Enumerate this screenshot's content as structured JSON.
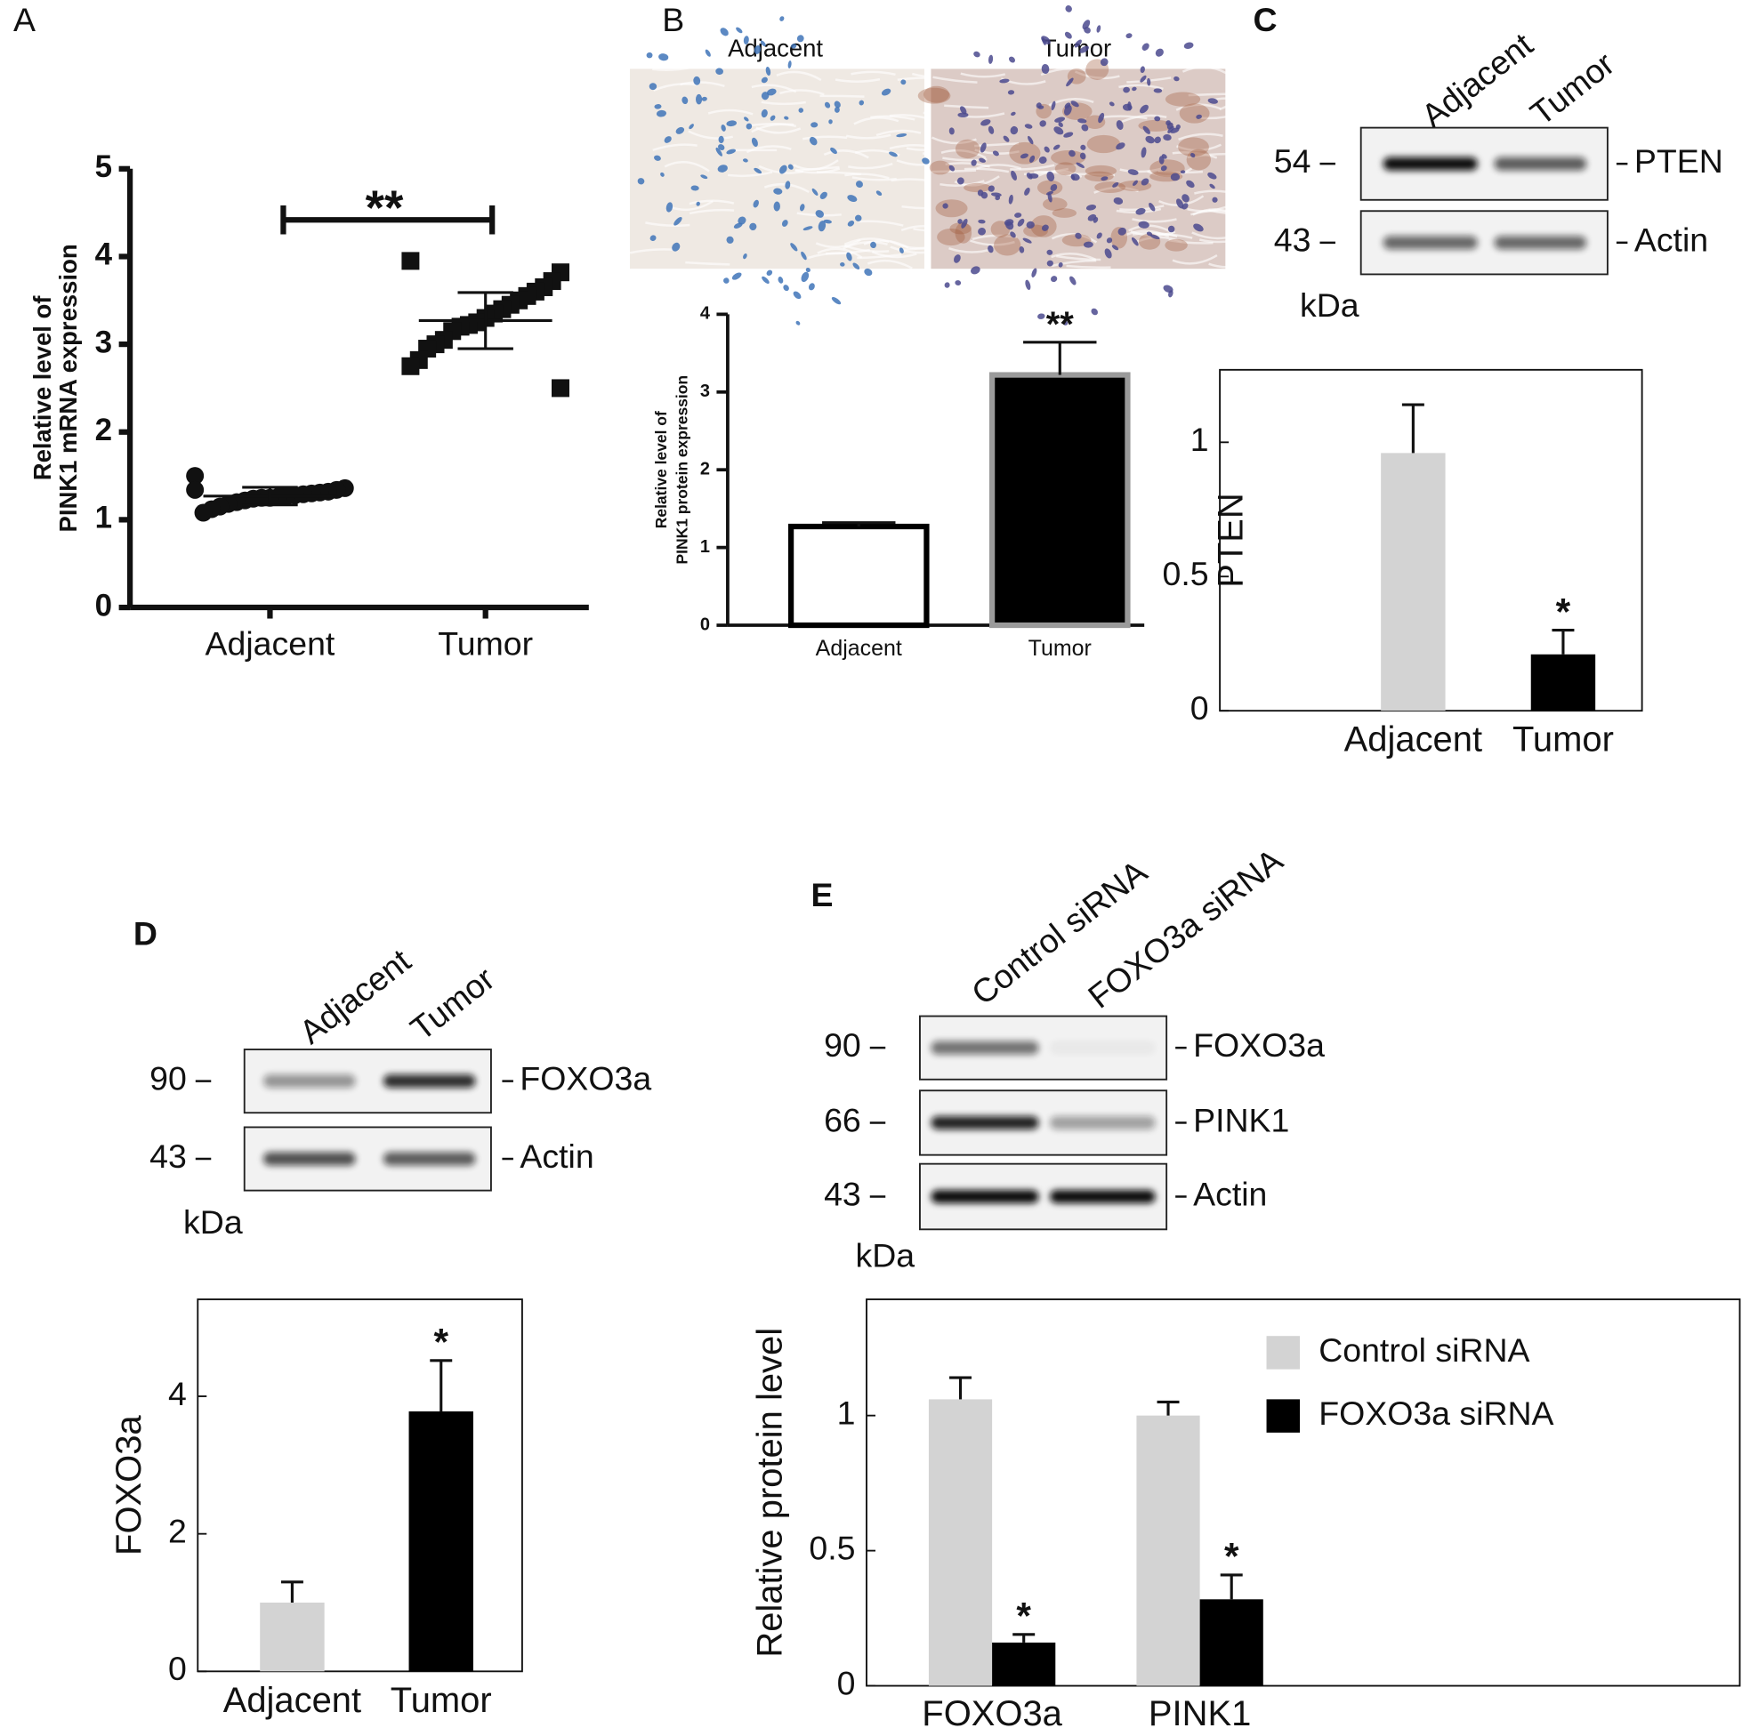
{
  "panel_labels": [
    "A",
    "B",
    "C",
    "D",
    "E"
  ],
  "histology": {
    "labels": [
      "Adjacent",
      "Tumor"
    ]
  },
  "blots": [
    {
      "lanes": [
        "Adjacent",
        "Tumor"
      ],
      "markers": [
        54,
        43
      ],
      "proteins": [
        "PTEN",
        "Actin"
      ],
      "unit": "kDa"
    },
    {
      "lanes": [
        "Adjacent",
        "Tumor"
      ],
      "markers": [
        90,
        43
      ],
      "proteins": [
        "FOXO3a",
        "Actin"
      ],
      "unit": "kDa"
    },
    {
      "lanes": [
        "Control siRNA",
        "FOXO3a siRNA"
      ],
      "markers": [
        90,
        66,
        43
      ],
      "proteins": [
        "FOXO3a",
        "PINK1",
        "Actin"
      ],
      "unit": "kDa"
    }
  ],
  "chart_data": [
    {
      "type": "scatter",
      "categories": [
        "Adjacent",
        "Tumor"
      ],
      "markers": [
        "circle",
        "square"
      ],
      "color": "#111111",
      "points": [
        [
          1.5,
          1.36,
          1.34,
          1.32,
          1.31,
          1.3,
          1.29,
          1.28,
          1.27,
          1.26,
          1.25,
          1.25,
          1.24,
          1.22,
          1.2,
          1.18,
          1.15,
          1.12,
          1.08,
          1.34
        ],
        [
          3.95,
          3.82,
          3.72,
          3.65,
          3.6,
          3.55,
          3.5,
          3.45,
          3.4,
          3.35,
          3.3,
          3.25,
          3.22,
          3.2,
          3.15,
          3.05,
          3.0,
          2.95,
          2.82,
          2.75,
          2.5
        ]
      ],
      "means": [
        1.27,
        3.27
      ],
      "sd": [
        0.1,
        0.32
      ],
      "ylim": [
        0,
        5
      ],
      "yticks": [
        0,
        1,
        2,
        3,
        4,
        5
      ],
      "y_label": [
        "Relative level of",
        "PINK1 mRNA expression"
      ],
      "annotation": "**"
    },
    {
      "type": "bar",
      "categories": [
        "Adjacent",
        "Tumor"
      ],
      "values": [
        1.27,
        3.22
      ],
      "errors": [
        0.05,
        0.42
      ],
      "colors": [
        "#ffffff",
        "#000000"
      ],
      "edge_colors": [
        "#000000",
        "#9a9a9a"
      ],
      "annotations": [
        null,
        "**"
      ],
      "ylim": [
        0,
        4
      ],
      "yticks": [
        0,
        1,
        2,
        3,
        4
      ],
      "y_label": [
        "Relative level of",
        "PINK1 protein expression"
      ]
    },
    {
      "type": "bar",
      "categories": [
        "Adjacent",
        "Tumor"
      ],
      "values": [
        0.96,
        0.21
      ],
      "errors": [
        0.18,
        0.09
      ],
      "colors": [
        "#d3d3d3",
        "#000000"
      ],
      "annotations": [
        null,
        "*"
      ],
      "ylim": [
        0,
        1.27
      ],
      "yticks": [
        0,
        0.5,
        1
      ],
      "y_label": "PTEN"
    },
    {
      "type": "bar",
      "categories": [
        "Adjacent",
        "Tumor"
      ],
      "values": [
        1.0,
        3.78
      ],
      "errors": [
        0.3,
        0.74
      ],
      "colors": [
        "#d3d3d3",
        "#000000"
      ],
      "annotations": [
        null,
        "*"
      ],
      "ylim": [
        0,
        5.41
      ],
      "yticks": [
        0,
        2,
        4
      ],
      "y_label": "FOXO3a"
    },
    {
      "type": "grouped_bar",
      "categories": [
        "FOXO3a",
        "PINK1"
      ],
      "series": [
        {
          "name": "Control siRNA",
          "color": "#d3d3d3",
          "values": [
            1.06,
            1.0
          ],
          "errors": [
            0.08,
            0.05
          ]
        },
        {
          "name": "FOXO3a siRNA",
          "color": "#000000",
          "values": [
            0.16,
            0.32
          ],
          "errors": [
            0.03,
            0.09
          ],
          "annotations": [
            "*",
            "*"
          ]
        }
      ],
      "ylim": [
        0,
        1.43
      ],
      "yticks": [
        0,
        0.5,
        1
      ],
      "y_label": "Relative protein level",
      "legend": "upper right"
    }
  ]
}
